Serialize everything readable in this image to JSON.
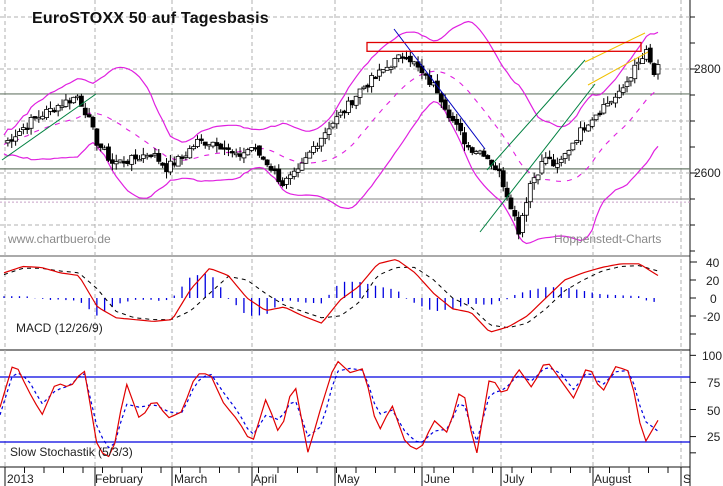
{
  "title": "EuroSTOXX 50 auf Tagesbasis",
  "watermark_left": "www.chartbuero.de",
  "watermark_right": "Hoppenstedt-Charts",
  "macd_label": "MACD (12/26/9)",
  "stoch_label": "Slow Stochastik (5/3/3)",
  "price_axis": [
    "2800",
    "2600"
  ],
  "macd_axis": [
    "40",
    "20",
    "0",
    "-20"
  ],
  "stoch_axis": [
    "100",
    "75",
    "50",
    "25"
  ],
  "months": [
    "2013",
    "February",
    "March",
    "April",
    "May",
    "June",
    "July",
    "August",
    "S"
  ],
  "colors": {
    "bollinger": "#e020e0",
    "macd_line": "#e00000",
    "signal_line": "#000000",
    "histogram": "#0000e0",
    "stoch_k": "#e00000",
    "stoch_d": "#0000e0",
    "resistance_box": "#e00000",
    "downtrend": "#0000c0",
    "uptrend": "#008040",
    "channel": "#f0c000",
    "support_lines": "#6a7a6a"
  },
  "chart_data": [
    {
      "type": "candlestick",
      "title": "EuroSTOXX 50 auf Tagesbasis",
      "xlabel": "",
      "ylabel": "",
      "x_ticks": [
        "2013",
        "February",
        "March",
        "April",
        "May",
        "June",
        "July",
        "August",
        "S"
      ],
      "y_ticks": [
        2600,
        2800
      ],
      "ylim": [
        2440,
        2935
      ],
      "grid": true,
      "overlays": [
        "Bollinger Bands (upper/middle/lower)",
        "horizontal support/resistance lines",
        "resistance box",
        "downtrend line",
        "uptrend channel",
        "rising channel"
      ],
      "horizontal_lines": [
        2752,
        2608,
        2550
      ],
      "resistance_box": {
        "from": "May",
        "to": "August",
        "low": 2835,
        "high": 2850
      },
      "close_approx": [
        {
          "month": "Jan",
          "start": 2660,
          "end": 2745
        },
        {
          "month": "Feb",
          "start": 2745,
          "end": 2585
        },
        {
          "month": "Mar",
          "start": 2600,
          "end": 2620
        },
        {
          "month": "Apr",
          "start": 2620,
          "end": 2570
        },
        {
          "month": "May",
          "start": 2570,
          "end": 2835
        },
        {
          "month": "Jun",
          "start": 2835,
          "end": 2490
        },
        {
          "month": "Jul",
          "start": 2490,
          "end": 2760
        },
        {
          "month": "Aug",
          "start": 2760,
          "end": 2790
        }
      ],
      "high_approx": 2855,
      "low_approx": 2490
    },
    {
      "type": "line",
      "title": "MACD (12/26/9)",
      "y_ticks": [
        40,
        20,
        0,
        -20
      ],
      "ylim": [
        -45,
        46
      ],
      "series": [
        {
          "name": "MACD",
          "values": [
            28,
            35,
            34,
            28,
            25,
            -10,
            -22,
            -24,
            -26,
            -24,
            10,
            33,
            25,
            0,
            -14,
            -10,
            -20,
            -28,
            -2,
            13,
            38,
            43,
            28,
            5,
            -12,
            -16,
            -38,
            -32,
            -20,
            0,
            20,
            28,
            34,
            38,
            38,
            25
          ]
        },
        {
          "name": "Signal",
          "values": [
            26,
            33,
            33,
            30,
            28,
            10,
            -15,
            -22,
            -24,
            -24,
            -14,
            5,
            24,
            20,
            5,
            -8,
            -15,
            -22,
            -20,
            -5,
            25,
            34,
            34,
            20,
            0,
            -10,
            -30,
            -33,
            -28,
            -12,
            8,
            20,
            30,
            35,
            36,
            30
          ]
        },
        {
          "name": "Histogram",
          "values": [
            2,
            2,
            1,
            -2,
            -3,
            -20,
            -7,
            -2,
            -2,
            0,
            24,
            28,
            1,
            -20,
            -19,
            -2,
            -5,
            -6,
            18,
            18,
            13,
            9,
            -6,
            -15,
            -12,
            -6,
            -8,
            1,
            8,
            12,
            12,
            8,
            4,
            3,
            2,
            -6
          ]
        }
      ]
    },
    {
      "type": "line",
      "title": "Slow Stochastik (5/3/3)",
      "y_ticks": [
        100,
        75,
        50,
        25
      ],
      "ylim": [
        0,
        105
      ],
      "bands": [
        80,
        20
      ],
      "series": [
        {
          "name": "%K",
          "values": [
            52,
            95,
            68,
            45,
            75,
            70,
            88,
            12,
            5,
            75,
            40,
            60,
            42,
            48,
            83,
            83,
            55,
            40,
            18,
            60,
            25,
            78,
            10,
            55,
            96,
            84,
            88,
            28,
            54,
            18,
            12,
            40,
            28,
            75,
            5,
            82,
            62,
            88,
            70,
            96,
            78,
            60,
            92,
            65,
            90,
            85,
            18,
            40
          ]
        },
        {
          "name": "%D",
          "values": [
            45,
            86,
            78,
            55,
            68,
            72,
            85,
            30,
            10,
            55,
            52,
            55,
            48,
            46,
            75,
            84,
            65,
            48,
            25,
            45,
            40,
            62,
            25,
            35,
            85,
            88,
            86,
            45,
            50,
            28,
            18,
            30,
            32,
            62,
            18,
            65,
            68,
            82,
            76,
            90,
            84,
            68,
            86,
            72,
            85,
            86,
            40,
            30
          ]
        }
      ]
    }
  ]
}
